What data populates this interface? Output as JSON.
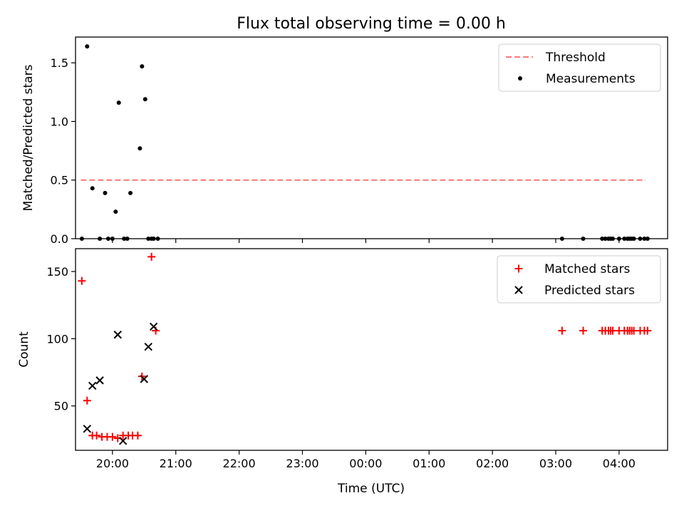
{
  "figure": {
    "title": "Flux total observing time = 0.00 h",
    "xlabel": "Time (UTC)"
  },
  "colors": {
    "threshold": "#ff7777",
    "measurements": "#000000",
    "matched": "#ff0000",
    "predicted": "#000000"
  },
  "chart_data": [
    {
      "type": "scatter",
      "panel": "top",
      "xlabel": "",
      "ylabel": "Matched/Predicted stars",
      "ylim": [
        0,
        1.72
      ],
      "xlim": [
        "19:25",
        "04:46"
      ],
      "yticks": [
        0.0,
        0.5,
        1.0,
        1.5
      ],
      "ytick_labels": [
        "0.0",
        "0.5",
        "1.0",
        "1.5"
      ],
      "legend_position": "top-right",
      "series": [
        {
          "name": "Threshold",
          "kind": "dashed-line",
          "x": [
            "19:30",
            "04:25"
          ],
          "y": [
            0.5,
            0.5
          ]
        },
        {
          "name": "Measurements",
          "kind": "points",
          "x": [
            "19:31",
            "19:36",
            "19:41",
            "19:48",
            "19:53",
            "19:56",
            "20:00",
            "20:03",
            "20:06",
            "20:11",
            "20:14",
            "20:17",
            "20:26",
            "20:28",
            "20:31",
            "20:34",
            "20:37",
            "20:39",
            "20:43",
            "03:06",
            "03:26",
            "03:44",
            "03:47",
            "03:50",
            "03:52",
            "03:54",
            "04:00",
            "04:05",
            "04:08",
            "04:10",
            "04:12",
            "04:14",
            "04:20",
            "04:24",
            "04:27"
          ],
          "y": [
            0.0,
            1.64,
            0.43,
            0.0,
            0.39,
            0.0,
            0.0,
            0.23,
            1.16,
            0.0,
            0.0,
            0.39,
            0.77,
            1.47,
            1.19,
            0.0,
            0.0,
            0.0,
            0.0,
            0.0,
            0.0,
            0.0,
            0.0,
            0.0,
            0.0,
            0.0,
            0.0,
            0.0,
            0.0,
            0.0,
            0.0,
            0.0,
            0.0,
            0.0,
            0.0
          ]
        }
      ]
    },
    {
      "type": "scatter",
      "panel": "bottom",
      "xlabel": "Time (UTC)",
      "ylabel": "Count",
      "ylim": [
        17,
        167
      ],
      "xlim": [
        "19:25",
        "04:46"
      ],
      "yticks": [
        50,
        100,
        150
      ],
      "ytick_labels": [
        "50",
        "100",
        "150"
      ],
      "xticks": [
        "20:00",
        "21:00",
        "22:00",
        "23:00",
        "00:00",
        "01:00",
        "02:00",
        "03:00",
        "04:00"
      ],
      "legend_position": "top-right",
      "series": [
        {
          "name": "Matched stars",
          "marker": "plus",
          "x": [
            "19:31",
            "19:36",
            "19:41",
            "19:45",
            "19:50",
            "19:55",
            "20:00",
            "20:05",
            "20:10",
            "20:15",
            "20:19",
            "20:24",
            "20:28",
            "20:37",
            "20:41",
            "03:06",
            "03:26",
            "03:44",
            "03:47",
            "03:50",
            "03:52",
            "03:54",
            "04:00",
            "04:05",
            "04:08",
            "04:10",
            "04:12",
            "04:14",
            "04:20",
            "04:24",
            "04:27"
          ],
          "y": [
            143,
            54,
            28,
            28,
            27,
            27,
            27,
            26,
            28,
            28,
            28,
            28,
            72,
            161,
            106,
            106,
            106,
            106,
            106,
            106,
            106,
            106,
            106,
            106,
            106,
            106,
            106,
            106,
            106,
            106,
            106
          ]
        },
        {
          "name": "Predicted stars",
          "marker": "x",
          "x": [
            "19:36",
            "19:41",
            "19:48",
            "20:05",
            "20:10",
            "20:30",
            "20:34",
            "20:39"
          ],
          "y": [
            33,
            65,
            69,
            103,
            24,
            70,
            94,
            109
          ]
        }
      ]
    }
  ]
}
